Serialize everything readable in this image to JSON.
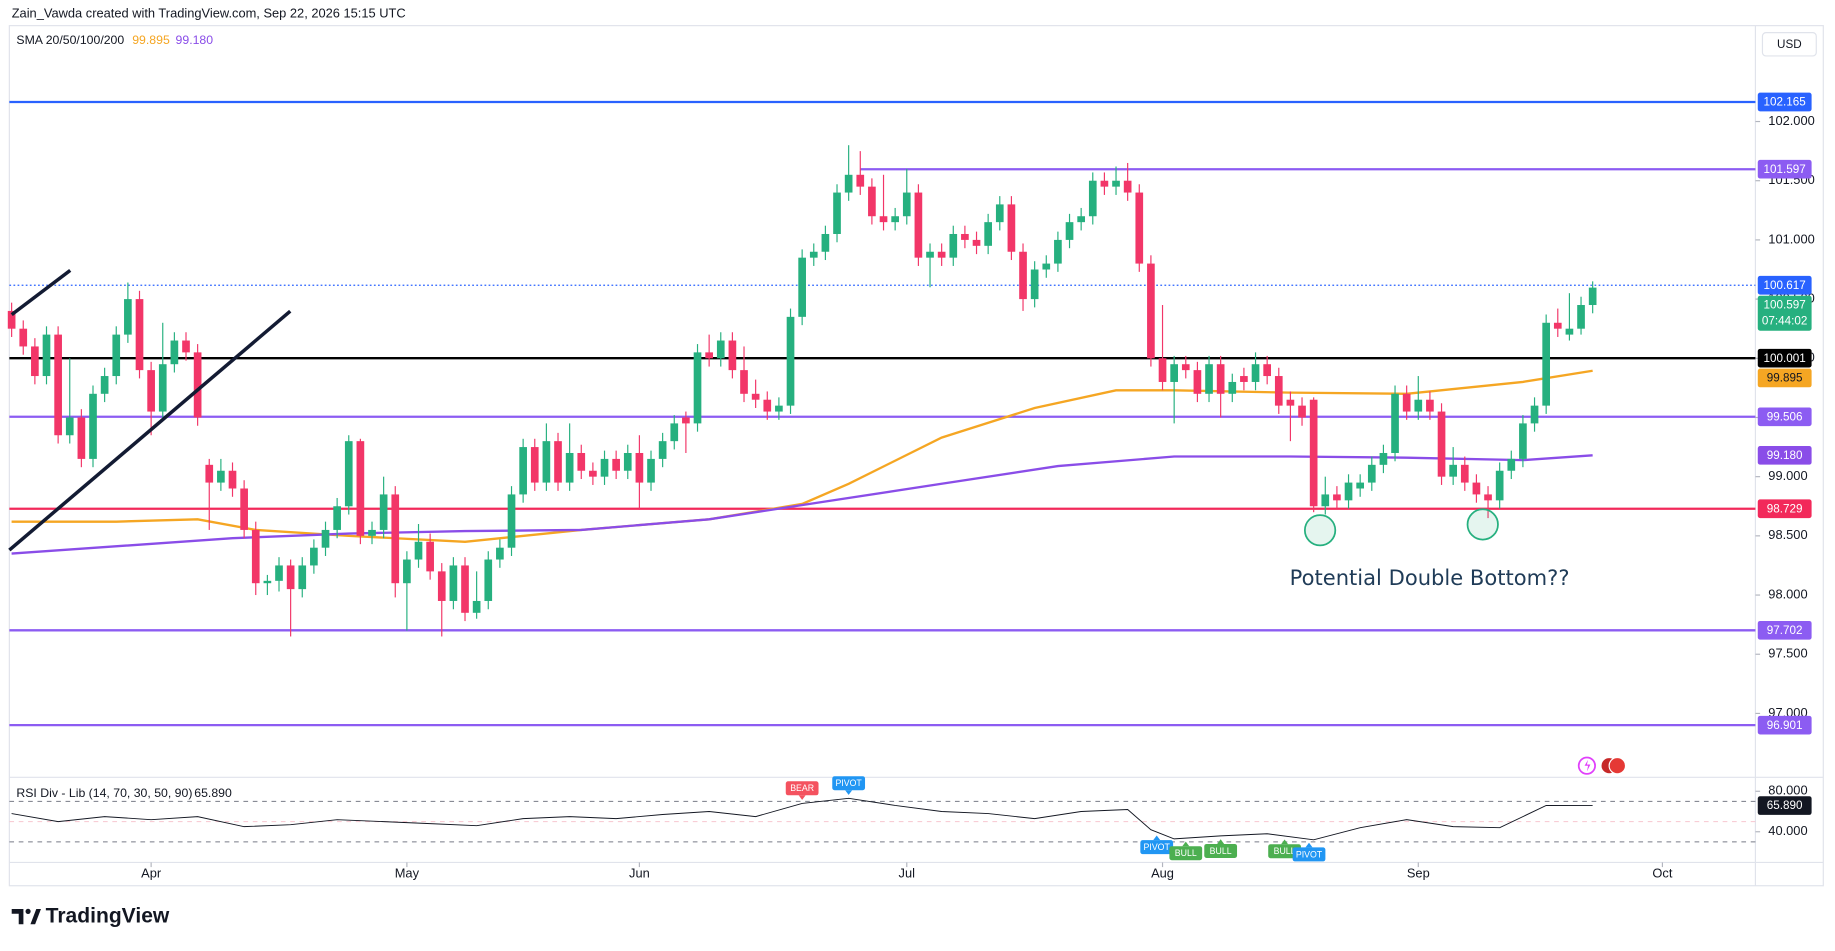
{
  "chart_data": {
    "type": "candlestick",
    "header": "Zain_Vawda created with TradingView.com, Sep 22, 2026 15:15 UTC",
    "currency": "USD",
    "brand": "TradingView",
    "annotation": "Potential Double Bottom??",
    "up_color": "#26b07f",
    "down_color": "#f23668",
    "xlim": [
      -1,
      150
    ],
    "xticks": [
      {
        "value": 12,
        "label": "Apr"
      },
      {
        "value": 34,
        "label": "May"
      },
      {
        "value": 54,
        "label": "Jun"
      },
      {
        "value": 77,
        "label": "Jul"
      },
      {
        "value": 99,
        "label": "Aug"
      },
      {
        "value": 121,
        "label": "Sep"
      },
      {
        "value": 142,
        "label": "Oct"
      }
    ],
    "ylim": [
      96.46,
      102.81
    ],
    "yticks": [
      {
        "value": 97,
        "label": "97.000"
      },
      {
        "value": 97.5,
        "label": "97.500"
      },
      {
        "value": 98,
        "label": "98.000"
      },
      {
        "value": 98.5,
        "label": "98.500"
      },
      {
        "value": 99,
        "label": "99.000"
      },
      {
        "value": 99.5,
        "label": "99.500"
      },
      {
        "value": 100,
        "label": "100.000"
      },
      {
        "value": 100.5,
        "label": "100.500"
      },
      {
        "value": 101,
        "label": "101.000"
      },
      {
        "value": 101.5,
        "label": "101.500"
      },
      {
        "value": 102,
        "label": "102.000"
      }
    ],
    "grid": false,
    "candles": [
      [
        100.4,
        100.47,
        100.18,
        100.25
      ],
      [
        100.25,
        100.32,
        100.03,
        100.1
      ],
      [
        100.1,
        100.17,
        99.78,
        99.85
      ],
      [
        99.85,
        100.27,
        99.78,
        100.2
      ],
      [
        100.2,
        100.27,
        99.28,
        99.35
      ],
      [
        99.35,
        100.0,
        99.28,
        99.5
      ],
      [
        99.5,
        99.57,
        99.08,
        99.15
      ],
      [
        99.15,
        99.77,
        99.08,
        99.7
      ],
      [
        99.7,
        99.92,
        99.63,
        99.85
      ],
      [
        99.85,
        100.27,
        99.78,
        100.2
      ],
      [
        100.2,
        100.64,
        100.13,
        100.5
      ],
      [
        100.5,
        100.57,
        99.83,
        99.9
      ],
      [
        99.9,
        99.97,
        99.35,
        99.55
      ],
      [
        99.55,
        100.3,
        99.48,
        99.95
      ],
      [
        99.95,
        100.22,
        99.88,
        100.15
      ],
      [
        100.15,
        100.22,
        99.98,
        100.05
      ],
      [
        100.05,
        100.12,
        99.43,
        99.5
      ],
      [
        99.1,
        99.15,
        98.55,
        98.95
      ],
      [
        98.95,
        99.15,
        98.88,
        99.05
      ],
      [
        99.05,
        99.12,
        98.83,
        98.9
      ],
      [
        98.9,
        98.97,
        98.48,
        98.55
      ],
      [
        98.55,
        98.62,
        98.0,
        98.1
      ],
      [
        98.1,
        98.17,
        98.0,
        98.12
      ],
      [
        98.12,
        98.32,
        98.03,
        98.25
      ],
      [
        98.25,
        98.3,
        97.65,
        98.05
      ],
      [
        98.05,
        98.32,
        97.98,
        98.25
      ],
      [
        98.25,
        98.47,
        98.18,
        98.4
      ],
      [
        98.4,
        98.62,
        98.33,
        98.55
      ],
      [
        98.55,
        98.82,
        98.48,
        98.75
      ],
      [
        98.75,
        99.35,
        98.68,
        99.3
      ],
      [
        99.3,
        99.32,
        98.43,
        98.5
      ],
      [
        98.5,
        98.62,
        98.43,
        98.55
      ],
      [
        98.55,
        99.0,
        98.48,
        98.85
      ],
      [
        98.85,
        98.92,
        97.98,
        98.1
      ],
      [
        98.1,
        98.37,
        97.7,
        98.3
      ],
      [
        98.3,
        98.6,
        98.23,
        98.45
      ],
      [
        98.45,
        98.52,
        98.13,
        98.2
      ],
      [
        98.2,
        98.27,
        97.65,
        97.95
      ],
      [
        97.95,
        98.32,
        97.88,
        98.25
      ],
      [
        98.25,
        98.32,
        97.78,
        97.85
      ],
      [
        97.85,
        98.2,
        97.8,
        97.95
      ],
      [
        97.95,
        98.37,
        97.88,
        98.3
      ],
      [
        98.3,
        98.47,
        98.23,
        98.4
      ],
      [
        98.4,
        98.92,
        98.33,
        98.85
      ],
      [
        98.85,
        99.32,
        98.78,
        99.25
      ],
      [
        99.25,
        99.32,
        98.88,
        98.95
      ],
      [
        98.95,
        99.45,
        98.88,
        99.3
      ],
      [
        99.3,
        99.37,
        98.88,
        98.95
      ],
      [
        98.95,
        99.45,
        98.88,
        99.2
      ],
      [
        99.2,
        99.27,
        98.98,
        99.05
      ],
      [
        99.05,
        99.12,
        98.93,
        99.0
      ],
      [
        99.0,
        99.22,
        98.93,
        99.15
      ],
      [
        99.15,
        99.22,
        98.98,
        99.05
      ],
      [
        99.05,
        99.27,
        98.98,
        99.2
      ],
      [
        99.2,
        99.35,
        98.72,
        98.95
      ],
      [
        98.95,
        99.22,
        98.88,
        99.15
      ],
      [
        99.15,
        99.37,
        99.08,
        99.3
      ],
      [
        99.3,
        99.52,
        99.23,
        99.45
      ],
      [
        99.5,
        99.55,
        99.2,
        99.45
      ],
      [
        99.45,
        100.12,
        99.38,
        100.05
      ],
      [
        100.05,
        100.2,
        99.93,
        100.0
      ],
      [
        100.0,
        100.22,
        99.93,
        100.15
      ],
      [
        100.15,
        100.22,
        99.83,
        99.9
      ],
      [
        99.9,
        100.1,
        99.63,
        99.7
      ],
      [
        99.7,
        99.82,
        99.58,
        99.65
      ],
      [
        99.65,
        99.72,
        99.48,
        99.55
      ],
      [
        99.55,
        99.67,
        99.48,
        99.6
      ],
      [
        99.6,
        100.42,
        99.53,
        100.35
      ],
      [
        100.35,
        100.92,
        100.28,
        100.85
      ],
      [
        100.85,
        100.97,
        100.78,
        100.9
      ],
      [
        100.9,
        101.12,
        100.83,
        101.05
      ],
      [
        101.05,
        101.47,
        100.98,
        101.4
      ],
      [
        101.4,
        101.8,
        101.33,
        101.55
      ],
      [
        101.55,
        101.75,
        101.38,
        101.45
      ],
      [
        101.45,
        101.52,
        101.13,
        101.2
      ],
      [
        101.2,
        101.55,
        101.08,
        101.15
      ],
      [
        101.15,
        101.27,
        101.08,
        101.2
      ],
      [
        101.2,
        101.6,
        101.13,
        101.4
      ],
      [
        101.4,
        101.47,
        100.78,
        100.85
      ],
      [
        100.85,
        100.97,
        100.6,
        100.9
      ],
      [
        100.9,
        100.97,
        100.78,
        100.85
      ],
      [
        100.85,
        101.12,
        100.78,
        101.05
      ],
      [
        101.05,
        101.12,
        100.93,
        101.0
      ],
      [
        101.0,
        101.07,
        100.88,
        100.95
      ],
      [
        100.95,
        101.22,
        100.88,
        101.15
      ],
      [
        101.15,
        101.37,
        101.08,
        101.3
      ],
      [
        101.3,
        101.37,
        100.83,
        100.9
      ],
      [
        100.9,
        100.97,
        100.4,
        100.5
      ],
      [
        100.5,
        100.82,
        100.43,
        100.75
      ],
      [
        100.75,
        100.87,
        100.68,
        100.8
      ],
      [
        100.8,
        101.07,
        100.73,
        101.0
      ],
      [
        101.0,
        101.22,
        100.93,
        101.15
      ],
      [
        101.15,
        101.27,
        101.08,
        101.2
      ],
      [
        101.2,
        101.57,
        101.13,
        101.5
      ],
      [
        101.5,
        101.57,
        101.38,
        101.45
      ],
      [
        101.45,
        101.62,
        101.38,
        101.5
      ],
      [
        101.5,
        101.65,
        101.33,
        101.4
      ],
      [
        101.4,
        101.47,
        100.73,
        100.8
      ],
      [
        100.8,
        100.87,
        99.93,
        100.0
      ],
      [
        100.0,
        100.45,
        99.73,
        99.8
      ],
      [
        99.8,
        100.02,
        99.45,
        99.95
      ],
      [
        99.95,
        100.02,
        99.83,
        99.9
      ],
      [
        99.9,
        99.97,
        99.63,
        99.7
      ],
      [
        99.7,
        100.02,
        99.63,
        99.95
      ],
      [
        99.95,
        100.02,
        99.5,
        99.7
      ],
      [
        99.7,
        99.87,
        99.63,
        99.8
      ],
      [
        99.85,
        99.92,
        99.73,
        99.8
      ],
      [
        99.8,
        100.05,
        99.73,
        99.95
      ],
      [
        99.95,
        100.02,
        99.78,
        99.85
      ],
      [
        99.85,
        99.92,
        99.53,
        99.6
      ],
      [
        99.65,
        99.72,
        99.3,
        99.6
      ],
      [
        99.6,
        99.67,
        99.43,
        99.5
      ],
      [
        99.65,
        99.67,
        98.7,
        98.75
      ],
      [
        98.75,
        99.0,
        98.68,
        98.85
      ],
      [
        98.85,
        98.92,
        98.73,
        98.8
      ],
      [
        98.8,
        99.02,
        98.73,
        98.95
      ],
      [
        98.9,
        99.02,
        98.83,
        98.95
      ],
      [
        98.95,
        99.17,
        98.88,
        99.1
      ],
      [
        99.1,
        99.27,
        99.03,
        99.2
      ],
      [
        99.2,
        99.77,
        99.13,
        99.7
      ],
      [
        99.7,
        99.77,
        99.48,
        99.55
      ],
      [
        99.55,
        99.85,
        99.48,
        99.65
      ],
      [
        99.65,
        99.72,
        99.48,
        99.55
      ],
      [
        99.55,
        99.62,
        98.93,
        99.0
      ],
      [
        99.0,
        99.25,
        98.93,
        99.1
      ],
      [
        99.1,
        99.17,
        98.88,
        98.95
      ],
      [
        98.95,
        99.02,
        98.78,
        98.85
      ],
      [
        98.85,
        98.92,
        98.65,
        98.8
      ],
      [
        98.8,
        99.12,
        98.73,
        99.05
      ],
      [
        99.05,
        99.22,
        98.98,
        99.15
      ],
      [
        99.15,
        99.52,
        99.08,
        99.45
      ],
      [
        99.45,
        99.67,
        99.38,
        99.6
      ],
      [
        99.6,
        100.37,
        99.53,
        100.3
      ],
      [
        100.3,
        100.42,
        100.18,
        100.25
      ],
      [
        100.2,
        100.55,
        100.15,
        100.25
      ],
      [
        100.25,
        100.52,
        100.2,
        100.45
      ],
      [
        100.45,
        100.65,
        100.38,
        100.597
      ]
    ],
    "last_price_label": "100.597",
    "countdown": "07:44:02",
    "sma": {
      "label": "SMA 20/50/100/200",
      "series": [
        {
          "color": "#f5a623",
          "x": [
            0,
            9,
            16,
            21,
            29,
            39,
            49,
            60,
            68,
            72,
            80,
            88,
            95,
            100,
            110,
            120,
            130,
            136
          ],
          "values": [
            98.62,
            98.62,
            98.64,
            98.55,
            98.5,
            98.45,
            98.55,
            98.64,
            98.77,
            98.94,
            99.33,
            99.58,
            99.73,
            99.73,
            99.71,
            99.7,
            99.8,
            99.895
          ],
          "last_label": "99.895"
        },
        {
          "color": "#8a4de8",
          "x": [
            0,
            19,
            29,
            39,
            49,
            60,
            70,
            80,
            90,
            100,
            110,
            120,
            130,
            136
          ],
          "values": [
            98.35,
            98.48,
            98.52,
            98.54,
            98.55,
            98.64,
            98.79,
            98.94,
            99.09,
            99.17,
            99.17,
            99.16,
            99.14,
            99.18
          ],
          "last_label": "99.180"
        }
      ]
    },
    "levels": [
      {
        "value": 102.165,
        "label": "102.165",
        "color": "#2962ff",
        "style": "solid"
      },
      {
        "value": 101.597,
        "label": "101.597",
        "color": "#8c5cf2",
        "style": "solid",
        "start": 73
      },
      {
        "value": 100.617,
        "label": "100.617",
        "color": "#2962ff",
        "style": "dotted"
      },
      {
        "value": 100.001,
        "label": "100.001",
        "color": "#000000",
        "style": "solid"
      },
      {
        "value": 99.506,
        "label": "99.506",
        "color": "#8c5cf2",
        "style": "solid"
      },
      {
        "value": 98.729,
        "label": "98.729",
        "color": "#f2295a",
        "style": "solid"
      },
      {
        "value": 97.702,
        "label": "97.702",
        "color": "#8c5cf2",
        "style": "solid"
      },
      {
        "value": 96.901,
        "label": "96.901",
        "color": "#8c5cf2",
        "style": "solid"
      }
    ],
    "rsi": {
      "label": "RSI Div - Lib (14, 70, 30, 50, 90)",
      "last_label": "65.890",
      "color": "#131722",
      "ylim": [
        9.7,
        92.6
      ],
      "yticks": [
        {
          "value": 80,
          "label": "80.000"
        },
        {
          "value": 40,
          "label": "40.000"
        }
      ],
      "levels": [
        70,
        50,
        30
      ],
      "x": [
        0,
        4,
        8,
        12,
        16,
        20,
        24,
        28,
        32,
        36,
        40,
        44,
        48,
        52,
        56,
        60,
        64,
        68,
        72,
        76,
        80,
        84,
        88,
        92,
        96,
        98,
        100,
        104,
        108,
        112,
        116,
        120,
        124,
        128,
        132,
        136
      ],
      "values": [
        58,
        50,
        55,
        52,
        55,
        45,
        47,
        52,
        50,
        48,
        46,
        53,
        55,
        53,
        57,
        60,
        55,
        68,
        73,
        66,
        60,
        58,
        53,
        60,
        62,
        42,
        33,
        36,
        38,
        32,
        44,
        52,
        45,
        44,
        66,
        65.89
      ],
      "signals": [
        {
          "label": "BEAR",
          "index": 68,
          "color": "#f4525f"
        },
        {
          "label": "PIVOT",
          "index": 72,
          "color": "#2196f3"
        },
        {
          "label": "PIVOT",
          "index": 98.5,
          "color": "#2196f3"
        },
        {
          "label": "BULL",
          "index": 101,
          "color": "#4caf50"
        },
        {
          "label": "BULL",
          "index": 104,
          "color": "#4caf50"
        },
        {
          "label": "BULL",
          "index": 109.5,
          "color": "#4caf50"
        },
        {
          "label": "PIVOT",
          "index": 111.6,
          "color": "#2196f3"
        }
      ]
    }
  }
}
